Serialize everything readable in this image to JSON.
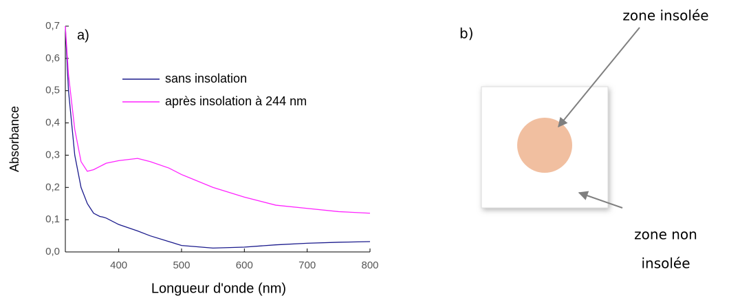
{
  "chart_data": {
    "type": "line",
    "panel_label": "a)",
    "x_label": "Longueur d'onde (nm)",
    "y_label": "Absorbance",
    "x": [
      315,
      320,
      330,
      340,
      350,
      360,
      370,
      375,
      380,
      400,
      430,
      450,
      480,
      500,
      550,
      600,
      650,
      700,
      750,
      800
    ],
    "series": [
      {
        "name": "sans insolation",
        "color": "#1a1a8c",
        "values": [
          0.7,
          0.5,
          0.3,
          0.2,
          0.15,
          0.12,
          0.11,
          0.108,
          0.105,
          0.085,
          0.065,
          0.05,
          0.032,
          0.02,
          0.012,
          0.015,
          0.022,
          0.027,
          0.03,
          0.032
        ]
      },
      {
        "name": "après insolation à 244 nm",
        "color": "#ff22ff",
        "values": [
          0.7,
          0.55,
          0.38,
          0.28,
          0.25,
          0.255,
          0.265,
          0.27,
          0.275,
          0.283,
          0.29,
          0.28,
          0.26,
          0.24,
          0.2,
          0.17,
          0.145,
          0.135,
          0.125,
          0.12
        ]
      }
    ],
    "xlim": [
      315,
      800
    ],
    "xticks": [
      400,
      500,
      600,
      700,
      800
    ],
    "ylim": [
      0,
      0.7
    ],
    "yticks": [
      {
        "value": 0,
        "label": "0,0"
      },
      {
        "value": 0.1,
        "label": "0,1"
      },
      {
        "value": 0.2,
        "label": "0,2"
      },
      {
        "value": 0.3,
        "label": "0,3"
      },
      {
        "value": 0.4,
        "label": "0,4"
      },
      {
        "value": 0.5,
        "label": "0,5"
      },
      {
        "value": 0.6,
        "label": "0,6"
      },
      {
        "value": 0.7,
        "label": "0,7"
      }
    ],
    "legend": "upper-center",
    "grid": false
  },
  "panel_b": {
    "label": "b)",
    "top_annotation": "zone insolée",
    "bottom_annotation": [
      "zone non",
      "insolée"
    ]
  }
}
